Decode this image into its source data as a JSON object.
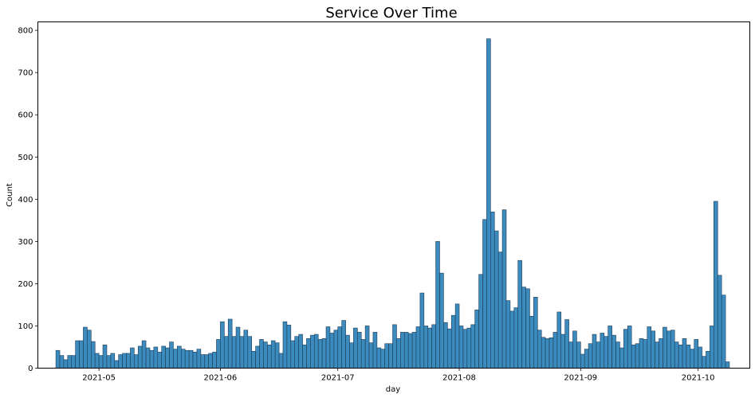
{
  "chart_data": {
    "type": "bar",
    "title": "Service Over Time",
    "xlabel": "day",
    "ylabel": "Count",
    "ylim": [
      0,
      820
    ],
    "yticks": [
      0,
      100,
      200,
      300,
      400,
      500,
      600,
      700,
      800
    ],
    "x_start": "2021-04-20",
    "x_end": "2021-10-09",
    "xticks": [
      "2021-05",
      "2021-06",
      "2021-07",
      "2021-08",
      "2021-09",
      "2021-10"
    ],
    "grid": false,
    "legend": "none",
    "bar_color": "#3b8bbf",
    "edge_color": "#1d3b55",
    "series": [
      {
        "start": "2021-04-20",
        "values": [
          42,
          30,
          20,
          30,
          30,
          65,
          65,
          97,
          90,
          63,
          35,
          30,
          55,
          30,
          35,
          18,
          32,
          35,
          35,
          48,
          32,
          52,
          65,
          48,
          42,
          50,
          38,
          52,
          48,
          62,
          45,
          52,
          45,
          42,
          42,
          38,
          45,
          32,
          32,
          35,
          38,
          68,
          110,
          75,
          116,
          75,
          97,
          75,
          90,
          75,
          40,
          52,
          68,
          62,
          55,
          65,
          60,
          35,
          110,
          102,
          65,
          75,
          80,
          55,
          70,
          78,
          80,
          68,
          70,
          98,
          83,
          90,
          98,
          113,
          78,
          60,
          95,
          85,
          68,
          100,
          60,
          85,
          48,
          45,
          58,
          58,
          103,
          70,
          85,
          85,
          82,
          85,
          98,
          178,
          100,
          95,
          103,
          300,
          225,
          108,
          93,
          125,
          152,
          100,
          92,
          95,
          103,
          138,
          222,
          352,
          780,
          370,
          325,
          275,
          375,
          160,
          135,
          143,
          255,
          192,
          188,
          123,
          168,
          90,
          73,
          70,
          72,
          85,
          133,
          80,
          115,
          62,
          88,
          62,
          33,
          45,
          58,
          80,
          62,
          83,
          75,
          100,
          78,
          62,
          48,
          92,
          100,
          55,
          58,
          70,
          68,
          98,
          88,
          62,
          70,
          97,
          88,
          90,
          62,
          55,
          70,
          55,
          45,
          68,
          50,
          28,
          40,
          100,
          395,
          220,
          173,
          15
        ]
      }
    ]
  }
}
